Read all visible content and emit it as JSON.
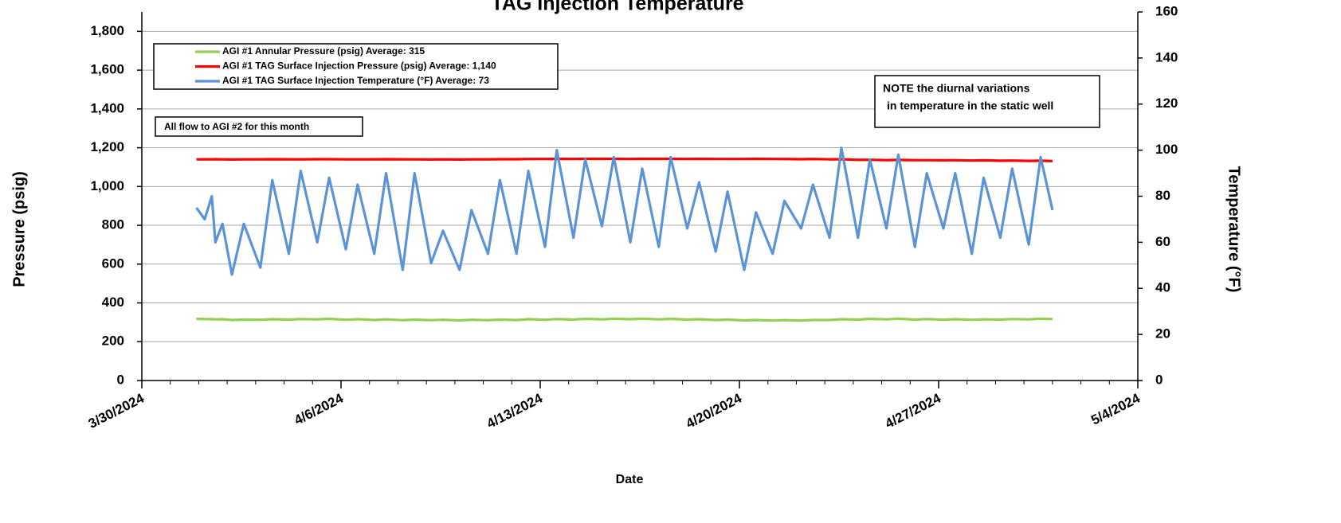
{
  "chart_data": {
    "type": "line",
    "title": "TAG Injection Temperature",
    "x_label": "Date",
    "y_label": "Pressure (psig)",
    "y2_label": "Temperature (°F)",
    "xlim": [
      "3/30/2024",
      "5/4/2024"
    ],
    "xticks": [
      "3/30/2024",
      "4/6/2024",
      "4/13/2024",
      "4/20/2024",
      "4/27/2024",
      "5/4/2024"
    ],
    "ylim": [
      0,
      1900
    ],
    "yticks": [
      0,
      {
        "value": 200,
        "label": "200"
      },
      400,
      600,
      800,
      {
        "value": 1000,
        "label": "1,000"
      },
      {
        "value": 1200,
        "label": "1,200"
      },
      {
        "value": 1400,
        "label": "1,400"
      },
      {
        "value": 1600,
        "label": "1,600"
      },
      {
        "value": 1800,
        "label": "1,800"
      }
    ],
    "y2lim": [
      0,
      160
    ],
    "y2ticks": [
      0,
      20,
      40,
      60,
      80,
      100,
      120,
      140,
      160
    ],
    "grid": true,
    "legend": "upper left",
    "annotations": [
      "All flow to AGI #2 for this month"
    ],
    "note": [
      "NOTE the diurnal variations",
      "in temperature in the static well"
    ],
    "x": [
      "3/31/2024 22:00",
      "4/1/2024 05:00",
      "4/1/2024 11:00",
      "4/1/2024 14:00",
      "4/1/2024 20:00",
      "4/2/2024 04:00",
      "4/2/2024 14:00",
      "4/3/2024 04:00",
      "4/3/2024 14:00",
      "4/4/2024 04:00",
      "4/4/2024 14:00",
      "4/5/2024 04:00",
      "4/5/2024 14:00",
      "4/6/2024 04:00",
      "4/6/2024 14:00",
      "4/7/2024 04:00",
      "4/7/2024 14:00",
      "4/8/2024 04:00",
      "4/8/2024 14:00",
      "4/9/2024 04:00",
      "4/9/2024 14:00",
      "4/10/2024 04:00",
      "4/10/2024 14:00",
      "4/11/2024 04:00",
      "4/11/2024 14:00",
      "4/12/2024 04:00",
      "4/12/2024 14:00",
      "4/13/2024 04:00",
      "4/13/2024 14:00",
      "4/14/2024 04:00",
      "4/14/2024 14:00",
      "4/15/2024 04:00",
      "4/15/2024 14:00",
      "4/16/2024 04:00",
      "4/16/2024 14:00",
      "4/17/2024 04:00",
      "4/17/2024 14:00",
      "4/18/2024 04:00",
      "4/18/2024 14:00",
      "4/19/2024 04:00",
      "4/19/2024 14:00",
      "4/20/2024 04:00",
      "4/20/2024 14:00",
      "4/21/2024 04:00",
      "4/21/2024 14:00",
      "4/22/2024 04:00",
      "4/22/2024 14:00",
      "4/23/2024 04:00",
      "4/23/2024 14:00",
      "4/24/2024 04:00",
      "4/24/2024 14:00",
      "4/25/2024 04:00",
      "4/25/2024 14:00",
      "4/26/2024 04:00",
      "4/26/2024 14:00",
      "4/27/2024 04:00",
      "4/27/2024 14:00",
      "4/28/2024 04:00",
      "4/28/2024 14:00",
      "4/29/2024 04:00",
      "4/29/2024 14:00",
      "4/30/2024 04:00",
      "4/30/2024 14:00",
      "5/1/2024 00:00"
    ],
    "series": [
      {
        "name": "AGI #1 Annular Pressure (psig) Average: 315",
        "color": "#92d050",
        "axis": "y",
        "values": [
          318,
          317,
          316,
          315,
          316,
          312,
          314,
          313,
          316,
          314,
          317,
          315,
          318,
          313,
          316,
          312,
          315,
          311,
          314,
          311,
          313,
          310,
          313,
          311,
          314,
          312,
          316,
          313,
          317,
          314,
          318,
          315,
          319,
          316,
          319,
          315,
          318,
          314,
          316,
          312,
          314,
          310,
          312,
          309,
          311,
          309,
          312,
          312,
          316,
          314,
          318,
          315,
          319,
          314,
          317,
          313,
          316,
          313,
          315,
          314,
          317,
          315,
          319,
          317
        ]
      },
      {
        "name": "AGI #1 TAG Surface Injection Pressure (psig) Average: 1,140",
        "color": "#ff0000",
        "axis": "y",
        "values": [
          1140,
          1140,
          1140,
          1141,
          1140,
          1139,
          1140,
          1140,
          1141,
          1140,
          1140,
          1141,
          1141,
          1140,
          1140,
          1140,
          1141,
          1140,
          1140,
          1139,
          1140,
          1139,
          1140,
          1140,
          1141,
          1141,
          1142,
          1142,
          1143,
          1142,
          1143,
          1143,
          1143,
          1142,
          1143,
          1143,
          1143,
          1142,
          1143,
          1142,
          1142,
          1142,
          1143,
          1142,
          1142,
          1141,
          1142,
          1140,
          1141,
          1137,
          1138,
          1136,
          1137,
          1136,
          1136,
          1135,
          1136,
          1134,
          1135,
          1133,
          1134,
          1132,
          1133,
          1131
        ]
      },
      {
        "name": "AGI #1 TAG Surface Injection Temperature (°F) Average: 73",
        "color": "#5b94d6",
        "axis": "y2",
        "values": [
          75,
          70,
          80,
          60,
          68,
          46,
          68,
          49,
          87,
          55,
          91,
          60,
          88,
          57,
          85,
          55,
          90,
          48,
          90,
          51,
          65,
          48,
          74,
          55,
          87,
          55,
          91,
          58,
          100,
          62,
          96,
          67,
          97,
          60,
          92,
          58,
          97,
          66,
          86,
          56,
          82,
          48,
          73,
          55,
          78,
          66,
          85,
          62,
          101,
          62,
          96,
          66,
          98,
          58,
          90,
          66,
          90,
          55,
          88,
          62,
          92,
          59,
          97,
          74
        ]
      }
    ]
  }
}
